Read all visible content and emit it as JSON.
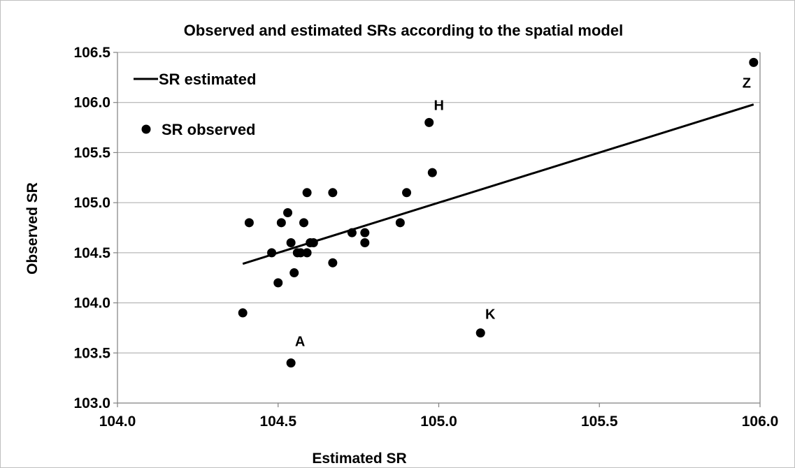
{
  "chart_data": {
    "type": "scatter",
    "title": "Observed and estimated SRs according to the spatial model",
    "xlabel": "Estimated SR",
    "ylabel": "Observed SR",
    "xlim": [
      104.0,
      106.0
    ],
    "ylim": [
      103.0,
      106.5
    ],
    "x_ticks": [
      "104.0",
      "104.5",
      "105.0",
      "105.5",
      "106.0"
    ],
    "y_ticks": [
      "103.0",
      "103.5",
      "104.0",
      "104.5",
      "105.0",
      "105.5",
      "106.0",
      "106.5"
    ],
    "grid": "horizontal",
    "legend_position": "top-left",
    "series": [
      {
        "name": "SR estimated",
        "type": "line",
        "color": "#000000",
        "x": [
          104.39,
          105.98
        ],
        "y": [
          104.39,
          105.98
        ]
      },
      {
        "name": "SR observed",
        "type": "scatter",
        "color": "#000000",
        "x": [
          104.39,
          104.41,
          104.48,
          104.5,
          104.51,
          104.53,
          104.54,
          104.54,
          104.55,
          104.56,
          104.57,
          104.58,
          104.59,
          104.59,
          104.6,
          104.61,
          104.67,
          104.67,
          104.73,
          104.77,
          104.77,
          104.88,
          104.9,
          104.97,
          104.98,
          105.13,
          105.98
        ],
        "y": [
          103.9,
          104.8,
          104.5,
          104.2,
          104.8,
          104.9,
          104.6,
          103.4,
          104.3,
          104.5,
          104.5,
          104.8,
          104.5,
          105.1,
          104.6,
          104.6,
          105.1,
          104.4,
          104.7,
          104.7,
          104.6,
          104.8,
          105.1,
          105.8,
          105.3,
          103.7,
          106.4
        ]
      }
    ],
    "annotations": [
      {
        "text": "A",
        "x": 104.54,
        "y": 103.4
      },
      {
        "text": "H",
        "x": 104.97,
        "y": 105.8
      },
      {
        "text": "K",
        "x": 105.13,
        "y": 103.7
      },
      {
        "text": "Z",
        "x": 105.98,
        "y": 106.4
      }
    ]
  }
}
